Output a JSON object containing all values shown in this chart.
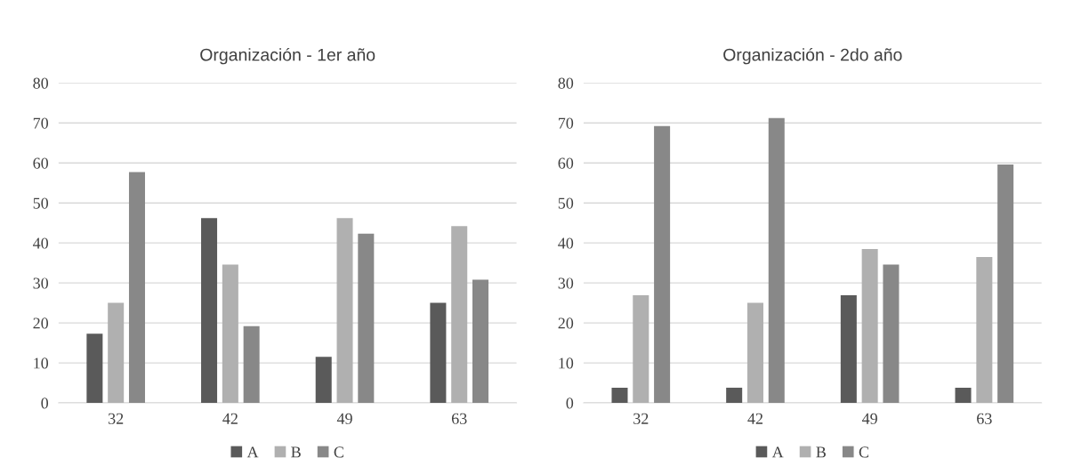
{
  "chart_data": [
    {
      "type": "bar",
      "title": "Organización - 1er año",
      "categories": [
        "32",
        "42",
        "49",
        "63"
      ],
      "series": [
        {
          "name": "A",
          "color": "#5a5a5a",
          "values": [
            17.3,
            46.2,
            11.5,
            25
          ]
        },
        {
          "name": "B",
          "color": "#b0b0b0",
          "values": [
            25,
            34.6,
            46.2,
            44.2
          ]
        },
        {
          "name": "C",
          "color": "#888888",
          "values": [
            57.7,
            19.2,
            42.3,
            30.8
          ]
        }
      ],
      "ylim": [
        0,
        80
      ],
      "yticks": [
        0,
        10,
        20,
        30,
        40,
        50,
        60,
        70,
        80
      ],
      "grid": "y",
      "legend": "bottom"
    },
    {
      "type": "bar",
      "title": "Organización - 2do año",
      "categories": [
        "32",
        "42",
        "49",
        "63"
      ],
      "series": [
        {
          "name": "A",
          "color": "#5a5a5a",
          "values": [
            3.8,
            3.8,
            26.9,
            3.8
          ]
        },
        {
          "name": "B",
          "color": "#b0b0b0",
          "values": [
            26.9,
            25,
            38.5,
            36.5
          ]
        },
        {
          "name": "C",
          "color": "#888888",
          "values": [
            69.2,
            71.2,
            34.6,
            59.6
          ]
        }
      ],
      "ylim": [
        0,
        80
      ],
      "yticks": [
        0,
        10,
        20,
        30,
        40,
        50,
        60,
        70,
        80
      ],
      "grid": "y",
      "legend": "bottom"
    }
  ]
}
